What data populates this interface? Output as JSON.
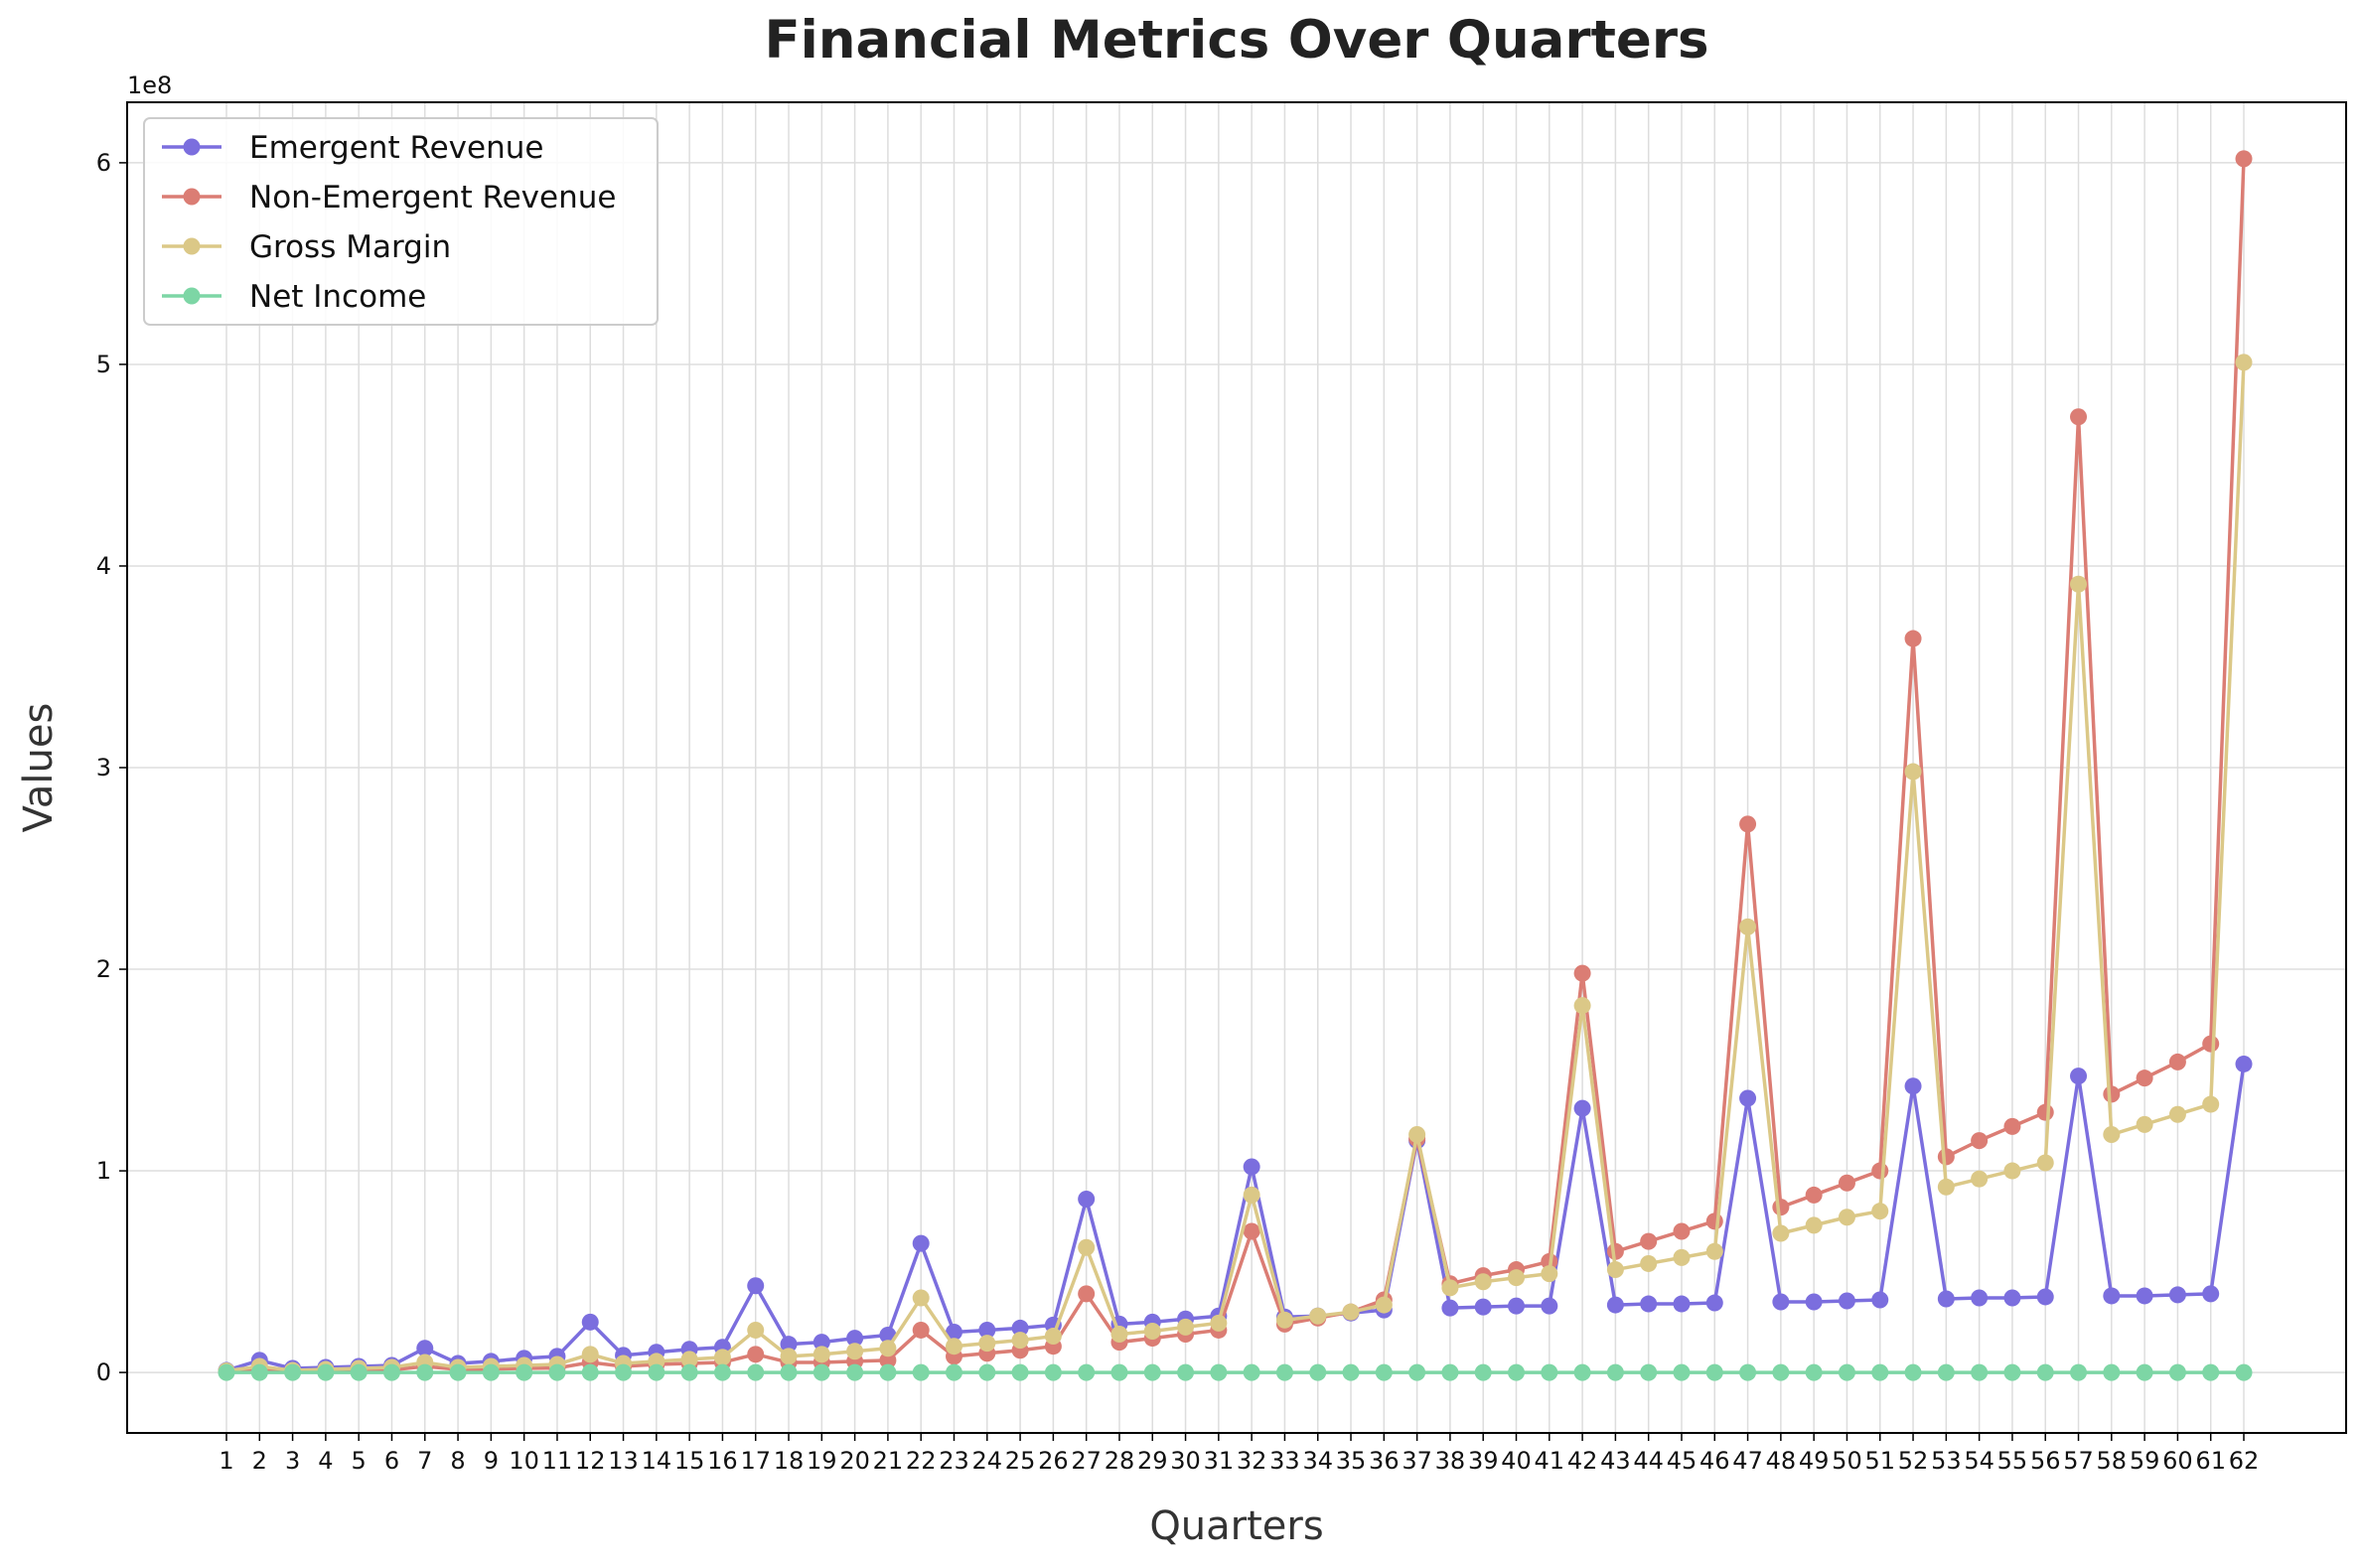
{
  "chart_data": {
    "type": "line",
    "title": "Financial Metrics Over Quarters",
    "xlabel": "Quarters",
    "ylabel": "Values",
    "y_offset_label": "1e8",
    "y_scale": 100000000,
    "ylim": [
      -30000000,
      630000000
    ],
    "yticks": [
      0,
      100000000,
      200000000,
      300000000,
      400000000,
      500000000,
      600000000
    ],
    "ytick_labels": [
      "0",
      "1",
      "2",
      "3",
      "4",
      "5",
      "6"
    ],
    "grid": true,
    "legend_position": "upper-left",
    "x": [
      1,
      2,
      3,
      4,
      5,
      6,
      7,
      8,
      9,
      10,
      11,
      12,
      13,
      14,
      15,
      16,
      17,
      18,
      19,
      20,
      21,
      22,
      23,
      24,
      25,
      26,
      27,
      28,
      29,
      30,
      31,
      32,
      33,
      34,
      35,
      36,
      37,
      38,
      39,
      40,
      41,
      42,
      43,
      44,
      45,
      46,
      47,
      48,
      49,
      50,
      51,
      52,
      53,
      54,
      55,
      56,
      57,
      58,
      59,
      60,
      61,
      62
    ],
    "series": [
      {
        "name": "Emergent Revenue",
        "color": "#7b6ede",
        "values": [
          1000000,
          6000000,
          2000000,
          2500000,
          3000000,
          3500000,
          12000000,
          4500000,
          5500000,
          7000000,
          8000000,
          25000000,
          8500000,
          10000000,
          11500000,
          12500000,
          43000000,
          14000000,
          15000000,
          17000000,
          18500000,
          64000000,
          20000000,
          21000000,
          22000000,
          23500000,
          86000000,
          24000000,
          25000000,
          26500000,
          28000000,
          102000000,
          27500000,
          28000000,
          29500000,
          31000000,
          115000000,
          32000000,
          32500000,
          33000000,
          33000000,
          131000000,
          33500000,
          34000000,
          34000000,
          34500000,
          136000000,
          35000000,
          35000000,
          35500000,
          36000000,
          142000000,
          36500000,
          37000000,
          37000000,
          37500000,
          147000000,
          38000000,
          38000000,
          38500000,
          39000000,
          153000000
        ]
      },
      {
        "name": "Non-Emergent Revenue",
        "color": "#db7d74",
        "values": [
          500000,
          2000000,
          500000,
          800000,
          1000000,
          1200000,
          3000000,
          1500000,
          1700000,
          2000000,
          2200000,
          5000000,
          3000000,
          4000000,
          4500000,
          5000000,
          9000000,
          5000000,
          5000000,
          5500000,
          6000000,
          21000000,
          8000000,
          9500000,
          11000000,
          13000000,
          39000000,
          15000000,
          17000000,
          19000000,
          21000000,
          70000000,
          24000000,
          27000000,
          30000000,
          36000000,
          116000000,
          44000000,
          48000000,
          51000000,
          55000000,
          198000000,
          60000000,
          65000000,
          70000000,
          75000000,
          272000000,
          82000000,
          88000000,
          94000000,
          100000000,
          364000000,
          107000000,
          115000000,
          122000000,
          129000000,
          474000000,
          138000000,
          146000000,
          154000000,
          163000000,
          602000000
        ]
      },
      {
        "name": "Gross Margin",
        "color": "#dbc887",
        "values": [
          800000,
          3000000,
          1000000,
          1500000,
          2000000,
          2500000,
          5000000,
          2500000,
          3000000,
          3500000,
          4000000,
          9000000,
          4500000,
          5500000,
          6500000,
          7500000,
          21000000,
          8000000,
          9000000,
          10500000,
          12000000,
          37000000,
          13000000,
          14500000,
          16000000,
          18000000,
          62000000,
          19000000,
          20500000,
          22500000,
          24500000,
          88000000,
          26000000,
          28000000,
          30000000,
          33500000,
          118000000,
          42000000,
          45000000,
          47000000,
          49000000,
          182000000,
          51000000,
          54000000,
          57000000,
          60000000,
          221000000,
          69000000,
          73000000,
          77000000,
          80000000,
          298000000,
          92000000,
          96000000,
          100000000,
          104000000,
          391000000,
          118000000,
          123000000,
          128000000,
          133000000,
          501000000
        ]
      },
      {
        "name": "Net Income",
        "color": "#7dd6a5",
        "values": [
          0,
          0,
          0,
          0,
          0,
          0,
          0,
          0,
          0,
          0,
          0,
          0,
          0,
          0,
          0,
          0,
          0,
          0,
          0,
          0,
          0,
          0,
          0,
          0,
          0,
          0,
          0,
          0,
          0,
          0,
          0,
          0,
          0,
          0,
          0,
          0,
          0,
          0,
          0,
          0,
          0,
          0,
          0,
          0,
          0,
          0,
          0,
          0,
          0,
          0,
          0,
          0,
          0,
          0,
          0,
          0,
          0,
          0,
          0,
          0,
          0,
          0
        ]
      }
    ]
  }
}
